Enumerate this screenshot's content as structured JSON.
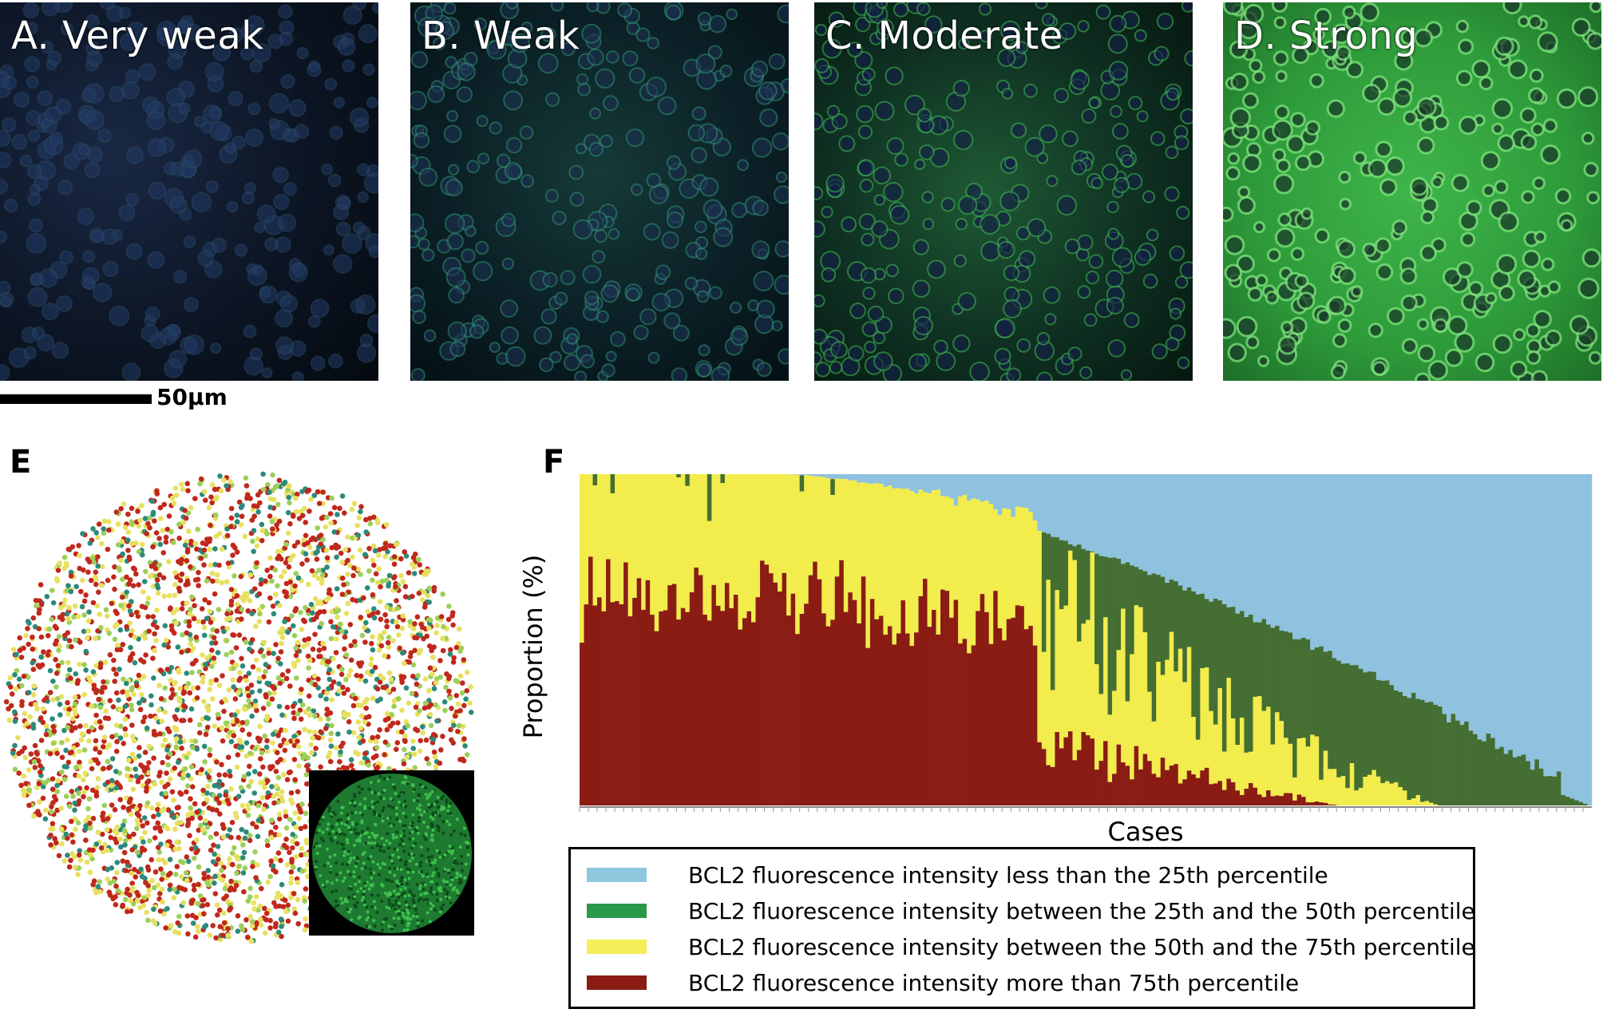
{
  "panels": [
    {
      "label": "A. Very weak"
    },
    {
      "label": "B. Weak"
    },
    {
      "label": "C. Moderate"
    },
    {
      "label": "D. Strong"
    }
  ],
  "scale_bar": {
    "label": "50μm"
  },
  "panel_e": {
    "label": "E"
  },
  "panel_f": {
    "label": "F"
  },
  "chart_data": {
    "type": "bar",
    "stacked": true,
    "title": "",
    "xlabel": "Cases",
    "ylabel": "Proportion (%)",
    "ylim": [
      0,
      100
    ],
    "n_cases": 230,
    "series": [
      {
        "name": "BCL2 fluorescence intensity less than the 25th percentile",
        "color": "#8ec2de"
      },
      {
        "name": "BCL2 fluorescence intensity between the 25th and the 50th percentile",
        "color": "#456e32"
      },
      {
        "name": "BCL2 fluorescence intensity between the 50th and the 75th percentile",
        "color": "#f2ec4c"
      },
      {
        "name": "BCL2 fluorescence intensity more than 75th percentile",
        "color": "#8a1c14"
      }
    ],
    "legend_swatch_colors": [
      "#8ec8de",
      "#2a9a4a",
      "#f4ee5a",
      "#8a1c14"
    ]
  }
}
